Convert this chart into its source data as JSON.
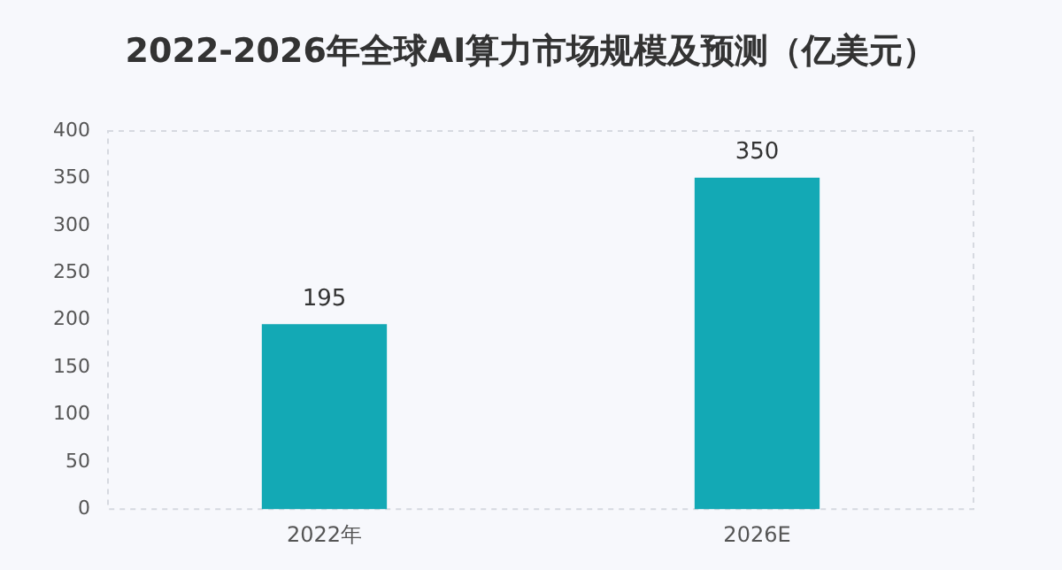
{
  "chart_data": {
    "type": "bar",
    "title": "2022-2026年全球AI算力市场规模及预测（亿美元）",
    "categories": [
      "2022年",
      "2026E"
    ],
    "values": [
      195,
      350
    ],
    "color": "#13a9b5",
    "ylim": [
      0,
      400
    ],
    "yticks": [
      0,
      50,
      100,
      150,
      200,
      250,
      300,
      350,
      400
    ],
    "grid": false,
    "data_labels": true
  }
}
